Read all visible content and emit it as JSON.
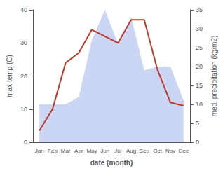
{
  "chart_data": {
    "type": "line",
    "xlabel": "date (month)",
    "ylabel": "max temp (C)",
    "y2label": "med. precipitation (kg/m2)",
    "categories": [
      "Jan",
      "Feb",
      "Mar",
      "Apr",
      "May",
      "Jun",
      "Jul",
      "Aug",
      "Sep",
      "Oct",
      "Nov",
      "Dec"
    ],
    "series": [
      {
        "type": "line",
        "color": "#c0392b",
        "values": [
          3.5,
          10.0,
          24.0,
          27.0,
          34.0,
          32.0,
          30.0,
          37.0,
          37.0,
          22.0,
          12.0,
          11.0
        ]
      },
      {
        "type": "area",
        "color": "#b8c8f0",
        "axis": "y2",
        "values": [
          10,
          10,
          10,
          12,
          27,
          35,
          26,
          33,
          19,
          20,
          20,
          11
        ]
      }
    ],
    "ylim": [
      0,
      40
    ],
    "yticks": [
      0,
      10,
      20,
      30,
      40
    ],
    "y2lim": [
      0,
      35
    ],
    "y2ticks": [
      0,
      5,
      10,
      15,
      20,
      25,
      30,
      35
    ],
    "grid": false
  }
}
